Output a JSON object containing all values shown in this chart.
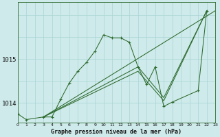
{
  "title": "Graphe pression niveau de la mer (hPa)",
  "background_color": "#ceeaea",
  "grid_color": "#aad4d4",
  "line_color": "#2d6a2d",
  "yticks": [
    1014,
    1015
  ],
  "ylim": [
    1013.55,
    1016.3
  ],
  "xlim": [
    0,
    23
  ],
  "main_line": {
    "x": [
      0,
      1,
      3,
      4,
      5,
      6,
      7,
      8,
      9,
      10,
      11,
      12,
      13,
      14,
      15,
      16,
      17,
      18,
      21,
      22
    ],
    "y": [
      1013.75,
      1013.62,
      1013.68,
      1013.68,
      1014.08,
      1014.45,
      1014.72,
      1014.92,
      1015.18,
      1015.55,
      1015.48,
      1015.48,
      1015.38,
      1014.82,
      1014.42,
      1014.82,
      1013.92,
      1014.02,
      1014.28,
      1016.1
    ]
  },
  "diag_lines": [
    {
      "x": [
        3,
        23
      ],
      "y": [
        1013.68,
        1016.1
      ]
    },
    {
      "x": [
        3,
        14,
        17,
        22
      ],
      "y": [
        1013.68,
        1014.82,
        1014.12,
        1016.1
      ]
    },
    {
      "x": [
        3,
        14,
        17,
        22
      ],
      "y": [
        1013.68,
        1014.72,
        1014.05,
        1016.1
      ]
    }
  ]
}
